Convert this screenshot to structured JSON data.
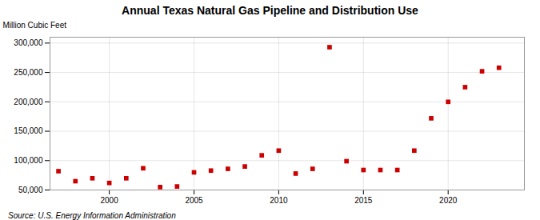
{
  "chart_data": {
    "type": "scatter",
    "title": "Annual Texas Natural Gas Pipeline and Distribution Use",
    "ylabel": "Million Cubic Feet",
    "source": "Source: U.S. Energy Information Administration",
    "x": [
      1997,
      1998,
      1999,
      2000,
      2001,
      2002,
      2003,
      2004,
      2005,
      2006,
      2007,
      2008,
      2009,
      2010,
      2011,
      2012,
      2013,
      2014,
      2015,
      2016,
      2017,
      2018,
      2019,
      2020,
      2021,
      2022,
      2023
    ],
    "values": [
      82000,
      65000,
      70000,
      62000,
      70000,
      87000,
      55000,
      56000,
      80000,
      83000,
      86000,
      90000,
      109000,
      117000,
      78000,
      86000,
      293000,
      99000,
      84000,
      84000,
      84000,
      117000,
      172000,
      200000,
      225000,
      252000,
      258000
    ],
    "color": "#cc0000",
    "marker": "square",
    "xlim": [
      1996.5,
      2024.5
    ],
    "xticks": [
      2000,
      2005,
      2010,
      2015,
      2020
    ],
    "ylim": [
      50000,
      310000
    ],
    "yticks": [
      {
        "value": 50000,
        "label": "50,000"
      },
      {
        "value": 100000,
        "label": "100,000"
      },
      {
        "value": 150000,
        "label": "150,000"
      },
      {
        "value": 200000,
        "label": "200,000"
      },
      {
        "value": 250000,
        "label": "250,000"
      },
      {
        "value": 300000,
        "label": "300,000"
      }
    ],
    "grid": true
  }
}
